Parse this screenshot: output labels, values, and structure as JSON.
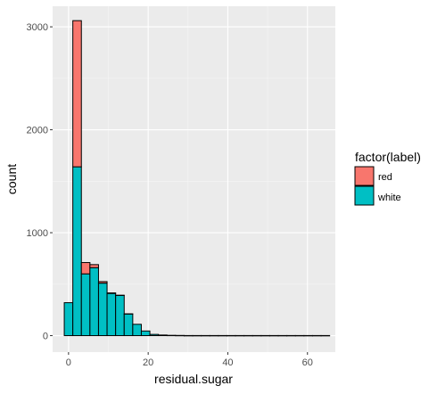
{
  "chart_data": {
    "type": "bar",
    "stacked": true,
    "xlabel": "residual.sugar",
    "ylabel": "count",
    "xlim": [
      -4,
      67
    ],
    "ylim": [
      -160,
      3200
    ],
    "xticks": [
      0,
      20,
      40,
      60
    ],
    "yticks": [
      0,
      1000,
      2000,
      3000
    ],
    "grid": true,
    "bin_width": 2.15,
    "legend": {
      "title": "factor(label)",
      "position": "right",
      "entries": [
        {
          "name": "red",
          "color": "#F8766D"
        },
        {
          "name": "white",
          "color": "#00BFC4"
        }
      ]
    },
    "bins": [
      0.0,
      2.15,
      4.3,
      6.45,
      8.6,
      10.75,
      12.9,
      15.05,
      17.2,
      19.35,
      21.5,
      23.65,
      25.8,
      27.95,
      30.1,
      32.25,
      34.4,
      36.55,
      38.7,
      40.85,
      43.0,
      45.15,
      47.3,
      49.45,
      51.6,
      53.75,
      55.9,
      58.05,
      60.2,
      62.35,
      64.5
    ],
    "series": [
      {
        "name": "white",
        "color": "#00BFC4",
        "values": [
          320,
          1640,
          600,
          660,
          510,
          410,
          390,
          210,
          110,
          45,
          12,
          6,
          3,
          2,
          1,
          1,
          1,
          1,
          1,
          1,
          1,
          1,
          1,
          1,
          1,
          1,
          1,
          1,
          1,
          1,
          1
        ]
      },
      {
        "name": "red",
        "color": "#F8766D",
        "values": [
          0,
          1420,
          110,
          30,
          15,
          5,
          3,
          2,
          0,
          0,
          0,
          0,
          0,
          0,
          0,
          0,
          0,
          0,
          0,
          0,
          0,
          0,
          0,
          0,
          0,
          0,
          0,
          0,
          0,
          0,
          0
        ]
      }
    ]
  }
}
